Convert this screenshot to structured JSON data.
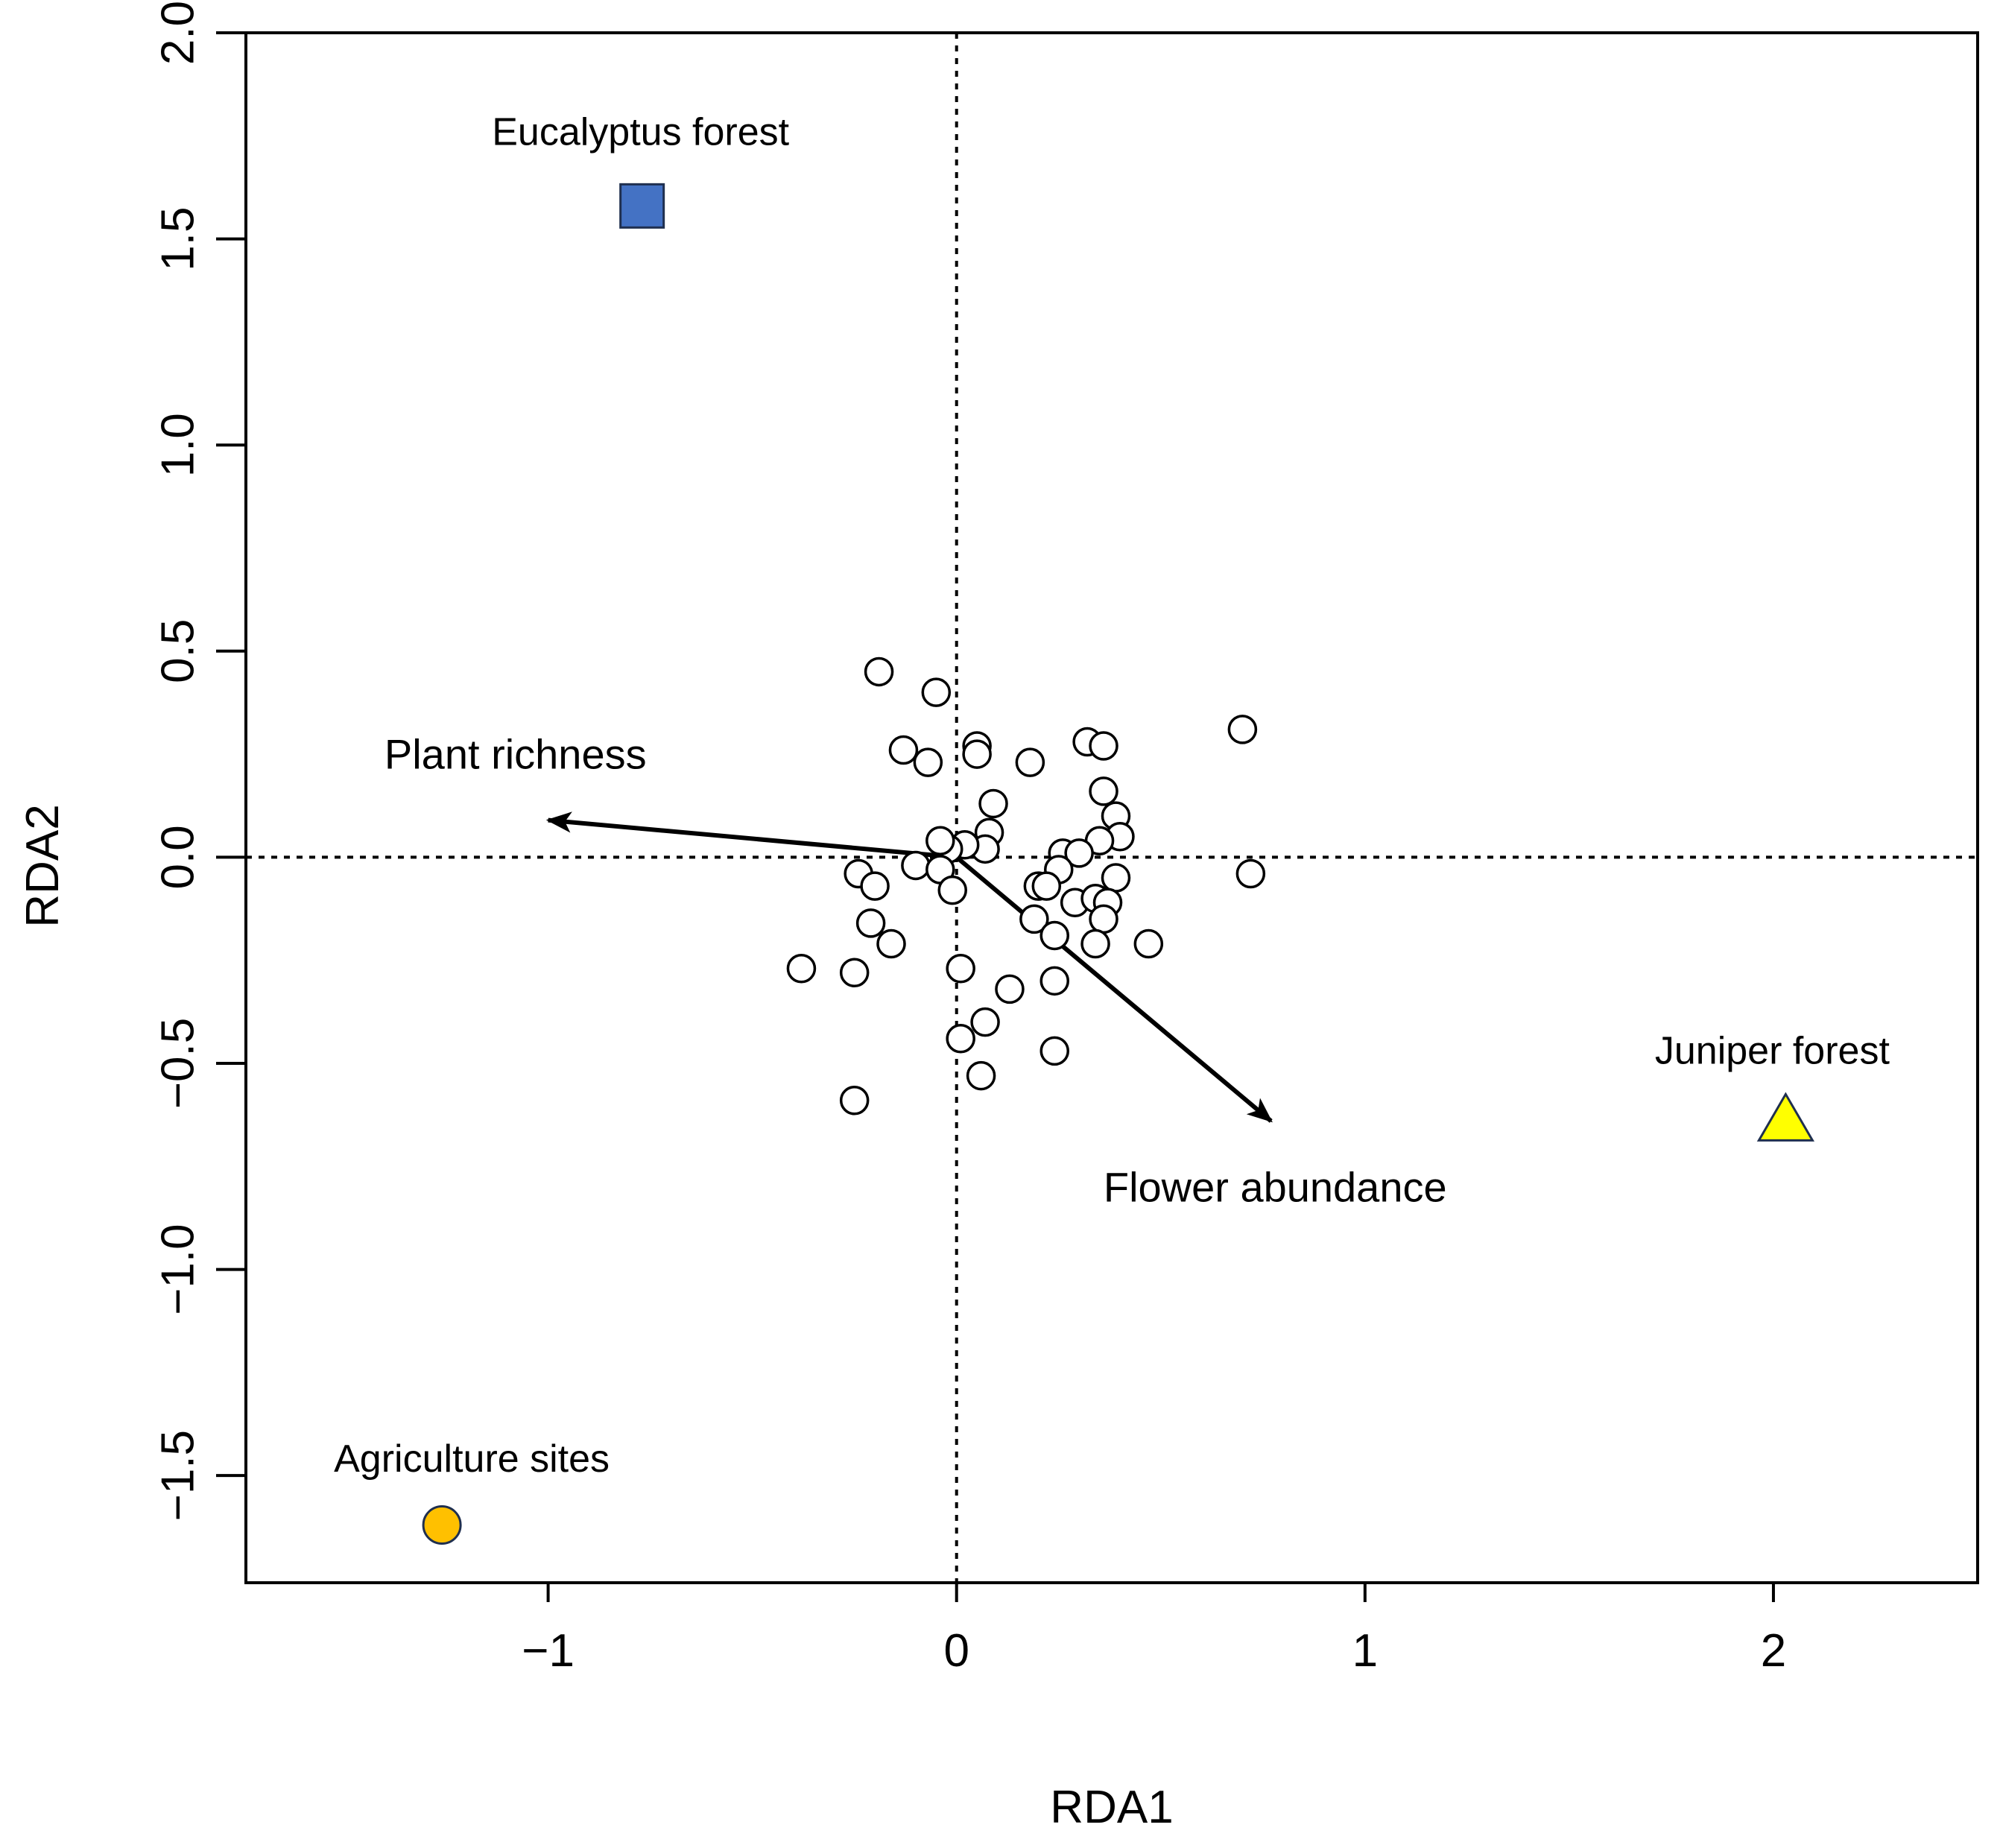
{
  "chart_data": {
    "type": "scatter",
    "title": "",
    "xlabel": "RDA1",
    "ylabel": "RDA2",
    "xlim": [
      -1.74,
      2.5
    ],
    "ylim": [
      -1.76,
      2.0
    ],
    "x_ticks": [
      -1,
      0,
      1,
      2
    ],
    "x_tick_labels": [
      "−1",
      "0",
      "1",
      "2"
    ],
    "y_ticks": [
      -1.5,
      -1.0,
      -0.5,
      0.0,
      0.5,
      1.0,
      1.5,
      2.0
    ],
    "y_tick_labels": [
      "−1.5",
      "−1.0",
      "−0.5",
      "0.0",
      "0.5",
      "1.0",
      "1.5",
      "2.0"
    ],
    "reference_lines": {
      "x": 0,
      "y": 0,
      "style": "dotted"
    },
    "samples": {
      "name": "Sites",
      "marker": "open-circle",
      "points": [
        [
          -0.19,
          0.45
        ],
        [
          -0.05,
          0.4
        ],
        [
          -0.13,
          0.26
        ],
        [
          -0.07,
          0.23
        ],
        [
          0.05,
          0.27
        ],
        [
          0.05,
          0.25
        ],
        [
          0.18,
          0.23
        ],
        [
          0.32,
          0.28
        ],
        [
          0.36,
          0.27
        ],
        [
          0.7,
          0.31
        ],
        [
          0.36,
          0.16
        ],
        [
          0.09,
          0.13
        ],
        [
          0.39,
          0.1
        ],
        [
          0.4,
          0.05
        ],
        [
          0.35,
          0.04
        ],
        [
          0.08,
          0.06
        ],
        [
          0.07,
          0.02
        ],
        [
          0.02,
          0.03
        ],
        [
          -0.02,
          0.02
        ],
        [
          -0.04,
          0.04
        ],
        [
          -0.1,
          -0.02
        ],
        [
          -0.04,
          -0.03
        ],
        [
          -0.01,
          -0.08
        ],
        [
          -0.24,
          -0.04
        ],
        [
          -0.2,
          -0.07
        ],
        [
          -0.21,
          -0.16
        ],
        [
          -0.16,
          -0.21
        ],
        [
          0.26,
          0.01
        ],
        [
          0.3,
          0.01
        ],
        [
          0.25,
          -0.03
        ],
        [
          0.72,
          -0.04
        ],
        [
          0.39,
          -0.05
        ],
        [
          0.2,
          -0.07
        ],
        [
          0.22,
          -0.07
        ],
        [
          0.29,
          -0.11
        ],
        [
          0.34,
          -0.1
        ],
        [
          0.37,
          -0.11
        ],
        [
          0.36,
          -0.15
        ],
        [
          0.19,
          -0.15
        ],
        [
          0.24,
          -0.19
        ],
        [
          0.34,
          -0.21
        ],
        [
          0.47,
          -0.21
        ],
        [
          -0.38,
          -0.27
        ],
        [
          -0.25,
          -0.28
        ],
        [
          0.01,
          -0.27
        ],
        [
          0.24,
          -0.3
        ],
        [
          0.13,
          -0.32
        ],
        [
          0.07,
          -0.4
        ],
        [
          0.01,
          -0.44
        ],
        [
          0.24,
          -0.47
        ],
        [
          0.06,
          -0.53
        ],
        [
          -0.25,
          -0.59
        ]
      ]
    },
    "environmental_vectors": [
      {
        "name": "Plant richness",
        "x": -1.0,
        "y": 0.09
      },
      {
        "name": "Flower abundance",
        "x": 0.77,
        "y": -0.64
      }
    ],
    "site_centroids": [
      {
        "name": "Eucalyptus forest",
        "x": -0.77,
        "y": 1.58,
        "marker": "square",
        "color": "#4472C4"
      },
      {
        "name": "Juniper forest",
        "x": 2.03,
        "y": -0.64,
        "marker": "triangle",
        "color": "#FFFF00"
      },
      {
        "name": "Agriculture sites",
        "x": -1.26,
        "y": -1.62,
        "marker": "circle",
        "color": "#FFC000"
      }
    ]
  }
}
